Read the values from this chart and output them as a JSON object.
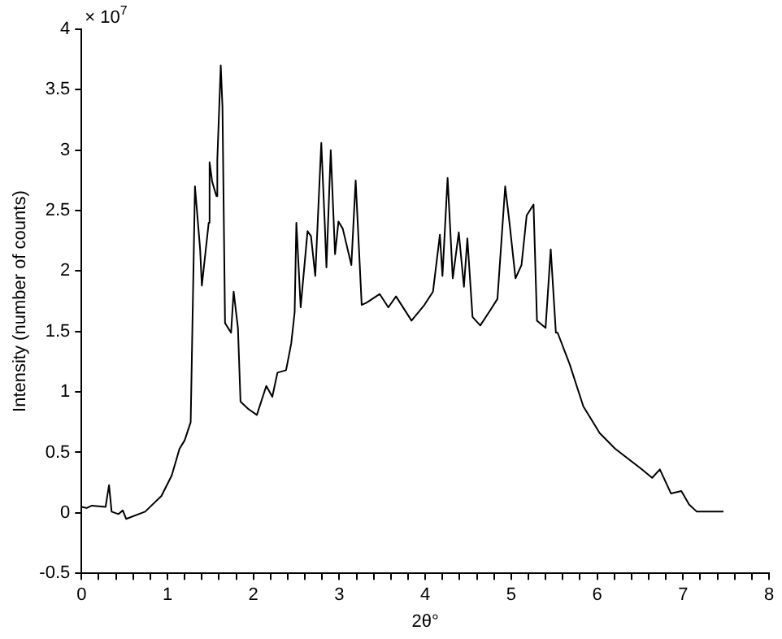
{
  "chart_data": {
    "type": "line",
    "xlabel": "2θ°",
    "ylabel": "Intensity (number of counts)",
    "annotations": [
      "× 10$^{7}$"
    ],
    "x": [
      0,
      0.06,
      0.12,
      0.28,
      0.32,
      0.35,
      0.43,
      0.48,
      0.52,
      0.74,
      0.93,
      1.05,
      1.14,
      1.2,
      1.27,
      1.32,
      1.38,
      1.4,
      1.48,
      1.49,
      1.52,
      1.57,
      1.58,
      1.62,
      1.64,
      1.67,
      1.74,
      1.77,
      1.82,
      1.85,
      1.94,
      2.04,
      2.15,
      2.22,
      2.28,
      2.38,
      2.44,
      2.48,
      2.5,
      2.55,
      2.63,
      2.67,
      2.72,
      2.79,
      2.83,
      2.85,
      2.9,
      2.95,
      2.99,
      3.04,
      3.14,
      3.19,
      3.26,
      3.32,
      3.47,
      3.57,
      3.66,
      3.84,
      3.99,
      4.09,
      4.17,
      4.2,
      4.26,
      4.32,
      4.39,
      4.45,
      4.49,
      4.55,
      4.64,
      4.76,
      4.84,
      4.93,
      4.98,
      5.05,
      5.12,
      5.18,
      5.26,
      5.3,
      5.4,
      5.46,
      5.52,
      5.54,
      5.68,
      5.84,
      6.03,
      6.21,
      6.52,
      6.64,
      6.73,
      6.86,
      6.98,
      7.07,
      7.16,
      7.47
    ],
    "series": [
      {
        "color": "#000000",
        "values": [
          0.05,
          0.04,
          0.06,
          0.05,
          0.23,
          0.01,
          -0.01,
          0.02,
          -0.05,
          0.01,
          0.14,
          0.31,
          0.53,
          0.6,
          0.75,
          2.7,
          2.18,
          1.88,
          2.4,
          2.9,
          2.74,
          2.62,
          2.92,
          3.7,
          3.36,
          1.57,
          1.49,
          1.83,
          1.53,
          0.92,
          0.86,
          0.81,
          1.05,
          0.96,
          1.16,
          1.18,
          1.4,
          1.66,
          2.4,
          1.7,
          2.33,
          2.29,
          1.96,
          3.06,
          2.4,
          2.03,
          3.0,
          2.14,
          2.41,
          2.35,
          2.05,
          2.75,
          1.72,
          1.74,
          1.81,
          1.7,
          1.79,
          1.59,
          1.72,
          1.83,
          2.3,
          1.96,
          2.77,
          1.94,
          2.32,
          1.87,
          2.27,
          1.62,
          1.55,
          1.68,
          1.77,
          2.7,
          2.4,
          1.94,
          2.05,
          2.46,
          2.55,
          1.59,
          1.53,
          2.18,
          1.49,
          1.49,
          1.23,
          0.88,
          0.66,
          0.53,
          0.36,
          0.29,
          0.36,
          0.16,
          0.18,
          0.07,
          0.01,
          0.01
        ]
      }
    ],
    "xlim": [
      0,
      8
    ],
    "xticks": [
      0,
      {
        "value": 0.2,
        "label": null
      },
      {
        "value": 0.4,
        "label": null
      },
      {
        "value": 0.6,
        "label": null
      },
      {
        "value": 0.8,
        "label": null
      },
      1,
      {
        "value": 1.2,
        "label": null
      },
      {
        "value": 1.4,
        "label": null
      },
      {
        "value": 1.6,
        "label": null
      },
      {
        "value": 1.8,
        "label": null
      },
      2,
      {
        "value": 2.2,
        "label": null
      },
      {
        "value": 2.4,
        "label": null
      },
      {
        "value": 2.6,
        "label": null
      },
      {
        "value": 2.8,
        "label": null
      },
      3,
      {
        "value": 3.2,
        "label": null
      },
      {
        "value": 3.4,
        "label": null
      },
      {
        "value": 3.6,
        "label": null
      },
      {
        "value": 3.8,
        "label": null
      },
      4,
      {
        "value": 4.2,
        "label": null
      },
      {
        "value": 4.4,
        "label": null
      },
      {
        "value": 4.6,
        "label": null
      },
      {
        "value": 4.8,
        "label": null
      },
      5,
      {
        "value": 5.2,
        "label": null
      },
      {
        "value": 5.4,
        "label": null
      },
      {
        "value": 5.6,
        "label": null
      },
      {
        "value": 5.8,
        "label": null
      },
      6,
      {
        "value": 6.2,
        "label": null
      },
      {
        "value": 6.4,
        "label": null
      },
      {
        "value": 6.6,
        "label": null
      },
      {
        "value": 6.8,
        "label": null
      },
      7,
      {
        "value": 7.2,
        "label": null
      },
      {
        "value": 7.4,
        "label": null
      },
      {
        "value": 7.6,
        "label": null
      },
      {
        "value": 7.8,
        "label": null
      },
      8
    ],
    "ylim": [
      -0.5,
      4
    ],
    "yticks": [
      -0.5,
      0,
      0.5,
      1,
      1.5,
      2,
      2.5,
      3,
      3.5,
      4
    ],
    "grid": false,
    "legend": false,
    "marker": "none",
    "line_style": "solid"
  }
}
